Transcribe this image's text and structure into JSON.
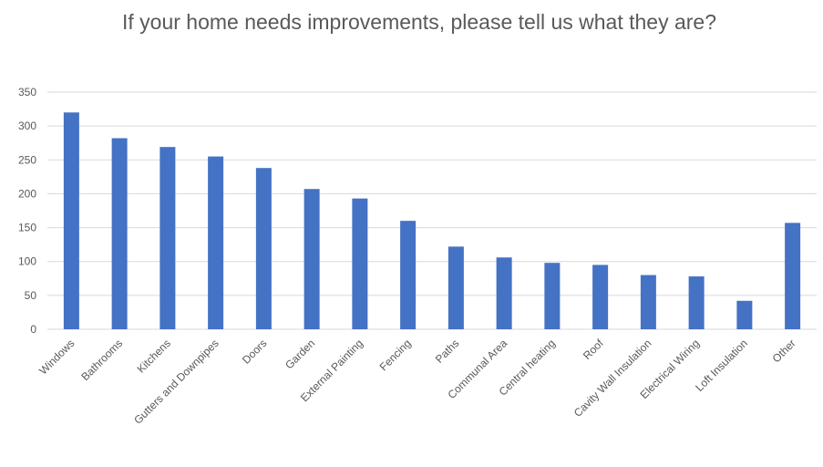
{
  "chart_data": {
    "type": "bar",
    "title": "If your home needs improvements, please tell us what they are?",
    "xlabel": "",
    "ylabel": "",
    "ylim": [
      0,
      350
    ],
    "yticks": [
      0,
      50,
      100,
      150,
      200,
      250,
      300,
      350
    ],
    "grid": true,
    "legend": "none",
    "bar_color": "#4472c4",
    "categories": [
      "Windows",
      "Bathrooms",
      "Kitchens",
      "Gutters and Downpipes",
      "Doors",
      "Garden",
      "External Painting",
      "Fencing",
      "Paths",
      "Communal Area",
      "Central heating",
      "Roof",
      "Cavity Wall Insulation",
      "Electrical Wiring",
      "Loft Insulation",
      "Other"
    ],
    "values": [
      320,
      282,
      269,
      255,
      238,
      207,
      193,
      160,
      122,
      106,
      98,
      95,
      80,
      78,
      42,
      157
    ]
  }
}
